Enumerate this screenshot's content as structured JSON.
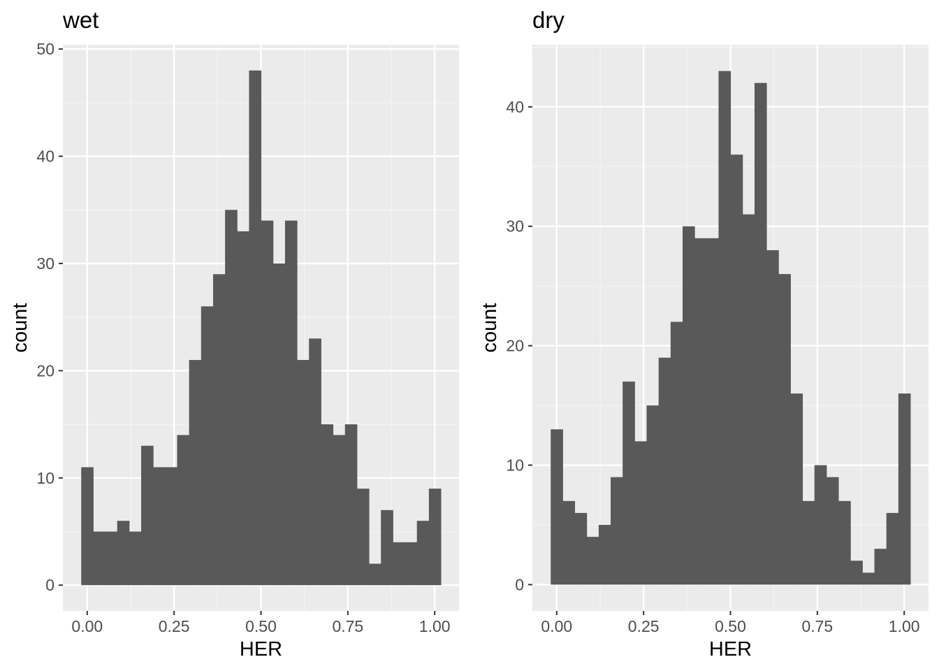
{
  "chart_data": [
    {
      "type": "bar",
      "title": "wet",
      "xlabel": "HER",
      "ylabel": "count",
      "xlim": [
        -0.07,
        1.07
      ],
      "ylim": [
        -2.4,
        50.4
      ],
      "bin_width": 0.0345,
      "bin_centers_first": 0.0,
      "x_ticks": [
        0,
        0.25,
        0.5,
        0.75,
        1.0
      ],
      "x_tick_labels": [
        "0.00",
        "0.25",
        "0.50",
        "0.75",
        "1.00"
      ],
      "y_ticks": [
        0,
        10,
        20,
        30,
        40,
        50
      ],
      "y_tick_labels": [
        "0",
        "10",
        "20",
        "30",
        "40",
        "50"
      ],
      "grid": true,
      "values": [
        11,
        5,
        5,
        6,
        5,
        13,
        11,
        11,
        14,
        21,
        26,
        29,
        35,
        33,
        48,
        34,
        30,
        34,
        21,
        23,
        15,
        14,
        15,
        9,
        2,
        7,
        4,
        4,
        6,
        9
      ],
      "bar_color": "#595959"
    },
    {
      "type": "bar",
      "title": "dry",
      "xlabel": "HER",
      "ylabel": "count",
      "xlim": [
        -0.07,
        1.07
      ],
      "ylim": [
        -2.2,
        45.2
      ],
      "bin_width": 0.0345,
      "bin_centers_first": 0.0,
      "x_ticks": [
        0,
        0.25,
        0.5,
        0.75,
        1.0
      ],
      "x_tick_labels": [
        "0.00",
        "0.25",
        "0.50",
        "0.75",
        "1.00"
      ],
      "y_ticks": [
        0,
        10,
        20,
        30,
        40
      ],
      "y_tick_labels": [
        "0",
        "10",
        "20",
        "30",
        "40"
      ],
      "grid": true,
      "values": [
        13,
        7,
        6,
        4,
        5,
        9,
        17,
        12,
        15,
        19,
        22,
        30,
        29,
        29,
        43,
        36,
        31,
        42,
        28,
        26,
        16,
        7,
        10,
        9,
        7,
        2,
        1,
        3,
        6,
        16
      ],
      "bar_color": "#595959"
    }
  ],
  "style": {
    "panel_background": "#ebebeb",
    "major_grid": "#ffffff",
    "minor_grid": "#f5f5f5",
    "tick_color": "#333333"
  }
}
